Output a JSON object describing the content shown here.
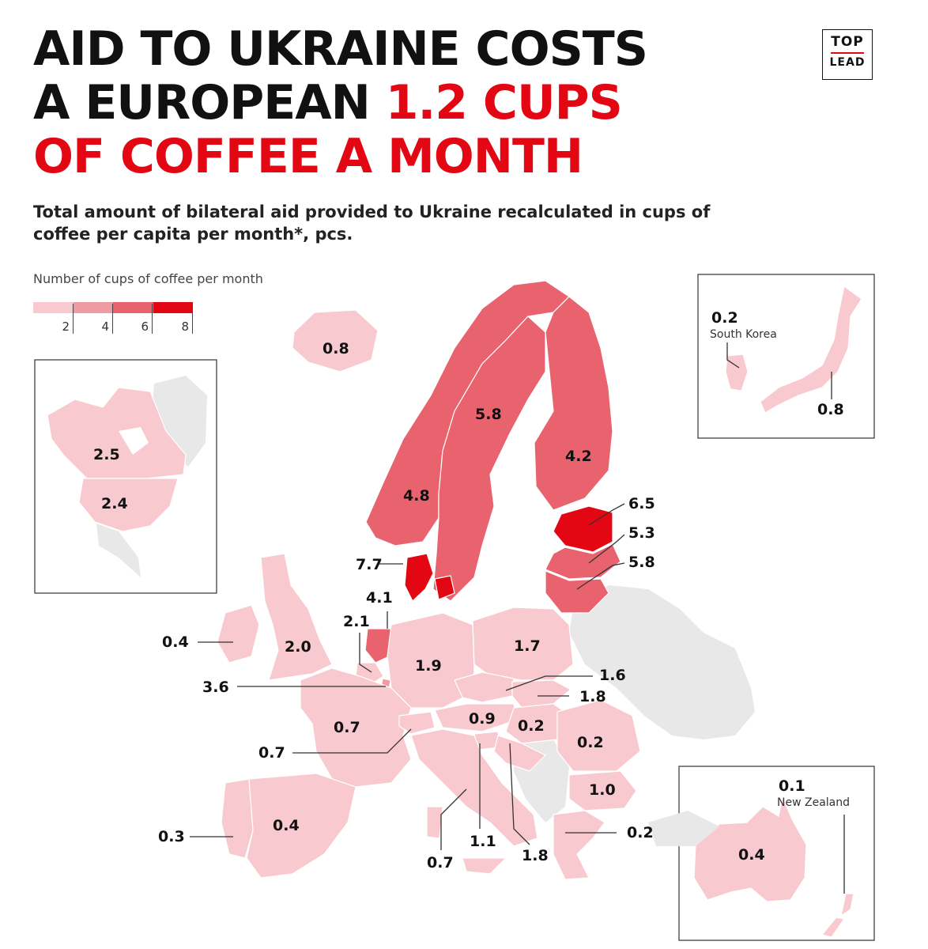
{
  "title": {
    "line1": "AID TO UKRAINE COSTS",
    "line2_prefix": "A EUROPEAN ",
    "line2_highlight": "1.2 CUPS",
    "line3": "OF COFFEE A MONTH"
  },
  "logo": {
    "top": "TOP",
    "bottom": "LEAD"
  },
  "subtitle": "Total amount of bilateral aid provided to Ukraine recalculated in cups of coffee per capita per month*, pcs.",
  "legend": {
    "title": "Number of cups of coffee per month",
    "ticks": [
      "2",
      "4",
      "6",
      "8"
    ],
    "colors": [
      "#f8c9cf",
      "#f09aa3",
      "#e9636f",
      "#e30613"
    ]
  },
  "colors": {
    "accent": "#e30613",
    "no_data": "#e8e8e8"
  },
  "map_data": {
    "metric": "cups of coffee per capita per month",
    "values": {
      "Iceland": "0.8",
      "Canada": "2.5",
      "USA": "2.4",
      "Norway": "4.8",
      "Sweden": "5.8",
      "Finland": "4.2",
      "Estonia": "6.5",
      "Latvia": "5.3",
      "Lithuania": "5.8",
      "Denmark": "7.7",
      "Netherlands": "4.1",
      "Belgium": "2.1",
      "Ireland": "0.4",
      "UK": "2.0",
      "Luxembourg": "3.6",
      "Germany": "1.9",
      "Poland": "1.7",
      "Czechia": "1.6",
      "Slovakia": "1.8",
      "France": "0.7",
      "Switzerland": "0.7",
      "Austria": "0.9",
      "Hungary": "0.2",
      "Romania": "0.2",
      "Bulgaria": "1.0",
      "Portugal": "0.3",
      "Spain": "0.4",
      "Italy": "0.7",
      "Slovenia": "1.1",
      "Croatia": "1.8",
      "Greece": "0.2",
      "South Korea": "0.2",
      "Japan": "0.8",
      "Australia": "0.4",
      "New Zealand": "0.1"
    },
    "inset_names": {
      "south_korea": "South Korea",
      "new_zealand": "New Zealand"
    }
  }
}
